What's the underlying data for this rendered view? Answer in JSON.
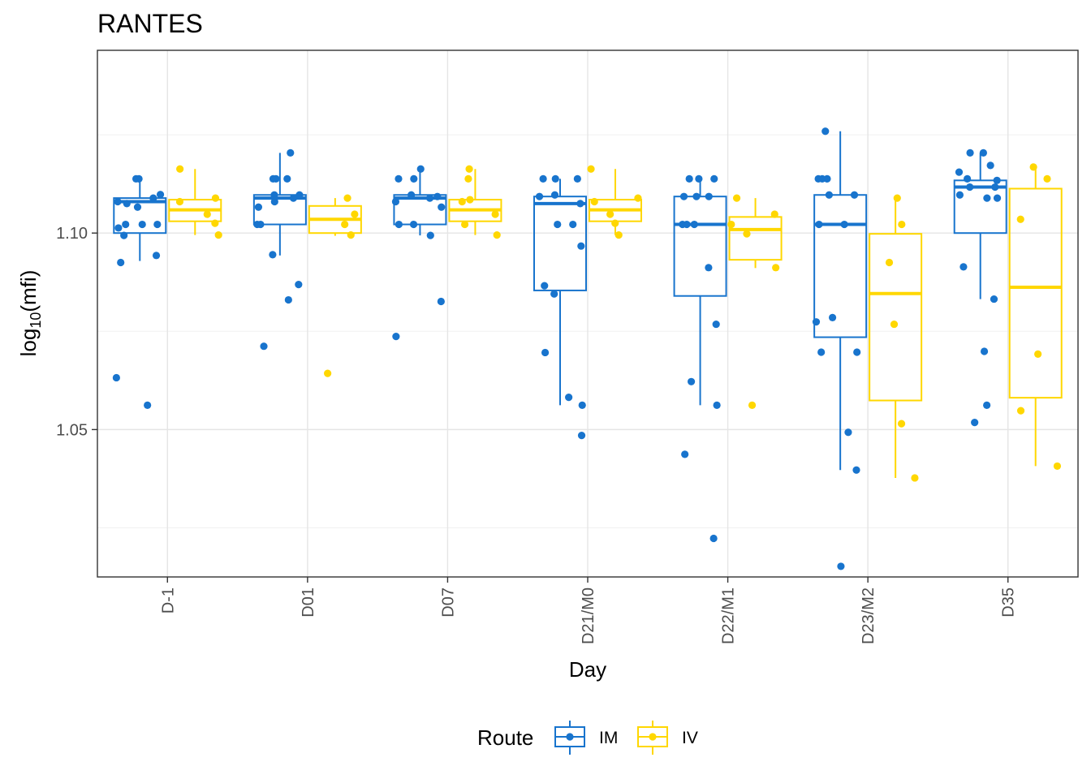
{
  "chart_data": {
    "type": "boxplot",
    "title": "RANTES",
    "xlabel": "Day",
    "ylabel_base": "log",
    "ylabel_sub": "10",
    "ylabel_rest": "(mfi)",
    "categories": [
      "D-1",
      "D01",
      "D07",
      "D21/M0",
      "D22/M1",
      "D23/M2",
      "D35"
    ],
    "y_ticks": [
      1.05,
      1.1
    ],
    "y_tick_labels": [
      "1.05",
      "1.10"
    ],
    "ylim": [
      1.0125,
      1.1465
    ],
    "grid": true,
    "legend": {
      "title": "Route",
      "position": "bottom"
    },
    "series": [
      {
        "name": "IM",
        "color": "#1874CD",
        "boxes": [
          {
            "q1": 1.1,
            "median": 1.108,
            "q3": 1.1089,
            "low": 1.0929,
            "high": 1.1138
          },
          {
            "q1": 1.1022,
            "median": 1.1089,
            "q3": 1.1097,
            "low": 1.0943,
            "high": 1.1204
          },
          {
            "q1": 1.1022,
            "median": 1.1089,
            "q3": 1.1097,
            "low": 1.0994,
            "high": 1.1163
          },
          {
            "q1": 1.0854,
            "median": 1.1075,
            "q3": 1.1093,
            "low": 1.0562,
            "high": 1.1138
          },
          {
            "q1": 1.084,
            "median": 1.1022,
            "q3": 1.1093,
            "low": 1.0562,
            "high": 1.1138
          },
          {
            "q1": 1.0735,
            "median": 1.1022,
            "q3": 1.1097,
            "low": 1.0397,
            "high": 1.1259
          },
          {
            "q1": 1.1,
            "median": 1.1117,
            "q3": 1.1134,
            "low": 1.0832,
            "high": 1.1204
          }
        ],
        "points": [
          [
            1.1013,
            1.1089,
            1.1098,
            1.108,
            1.1075,
            1.1066,
            1.1138,
            1.1138,
            1.1022,
            1.1022,
            1.1022,
            1.0994,
            1.0943,
            1.0925,
            1.0632,
            1.0562
          ],
          [
            1.1204,
            1.1138,
            1.1138,
            1.1138,
            1.1097,
            1.1097,
            1.1089,
            1.108,
            1.1066,
            1.1022,
            1.1022,
            1.0945,
            1.0869,
            1.083,
            1.0712
          ],
          [
            1.1163,
            1.1138,
            1.1138,
            1.1097,
            1.1093,
            1.1089,
            1.108,
            1.1066,
            1.1022,
            1.1022,
            1.0994,
            1.0826,
            1.0737
          ],
          [
            1.1138,
            1.1138,
            1.1138,
            1.1097,
            1.1093,
            1.1075,
            1.1022,
            1.1022,
            1.0967,
            1.0866,
            1.0845,
            1.0696,
            1.0582,
            1.0562,
            1.0485
          ],
          [
            1.1138,
            1.1138,
            1.1138,
            1.1093,
            1.1093,
            1.1093,
            1.1022,
            1.1022,
            1.1022,
            1.0912,
            1.0768,
            1.0622,
            1.0562,
            1.0437,
            1.0223
          ],
          [
            1.1259,
            1.1138,
            1.1138,
            1.1138,
            1.1097,
            1.1097,
            1.1022,
            1.1022,
            1.0785,
            1.0774,
            1.0697,
            1.0697,
            1.0493,
            1.0397,
            1.0152
          ],
          [
            1.1204,
            1.1204,
            1.1172,
            1.1155,
            1.1138,
            1.1134,
            1.1117,
            1.1117,
            1.1097,
            1.1089,
            1.1089,
            1.0914,
            1.0832,
            1.0699,
            1.0562,
            1.0518
          ]
        ]
      },
      {
        "name": "IV",
        "color": "#FFD700",
        "boxes": [
          {
            "q1": 1.103,
            "median": 1.1059,
            "q3": 1.1085,
            "low": 1.0995,
            "high": 1.1163
          },
          {
            "q1": 1.1,
            "median": 1.1035,
            "q3": 1.1069,
            "low": 1.0993,
            "high": 1.1089
          },
          {
            "q1": 1.103,
            "median": 1.1059,
            "q3": 1.1085,
            "low": 1.0995,
            "high": 1.1163
          },
          {
            "q1": 1.103,
            "median": 1.1059,
            "q3": 1.1085,
            "low": 1.0995,
            "high": 1.1163
          },
          {
            "q1": 1.0932,
            "median": 1.1009,
            "q3": 1.1041,
            "low": 1.0911,
            "high": 1.1089
          },
          {
            "q1": 1.0574,
            "median": 1.0846,
            "q3": 1.0998,
            "low": 1.0377,
            "high": 1.1089
          },
          {
            "q1": 1.0581,
            "median": 1.0862,
            "q3": 1.1113,
            "low": 1.0407,
            "high": 1.1163
          }
        ],
        "points": [
          [
            1.1163,
            1.1089,
            1.108,
            1.1048,
            1.1025,
            1.0995
          ],
          [
            1.1089,
            1.1048,
            1.1022,
            1.0995,
            1.0643
          ],
          [
            1.1163,
            1.1138,
            1.1085,
            1.108,
            1.1048,
            1.1022,
            1.0995
          ],
          [
            1.1163,
            1.1089,
            1.108,
            1.1048,
            1.1025,
            1.0995
          ],
          [
            1.1089,
            1.1048,
            1.1022,
            1.0998,
            1.0912,
            1.0562
          ],
          [
            1.1089,
            1.1022,
            1.0925,
            1.0768,
            1.0515,
            1.0377
          ],
          [
            1.1168,
            1.1138,
            1.1035,
            1.0692,
            1.0548,
            1.0407
          ]
        ]
      }
    ]
  }
}
